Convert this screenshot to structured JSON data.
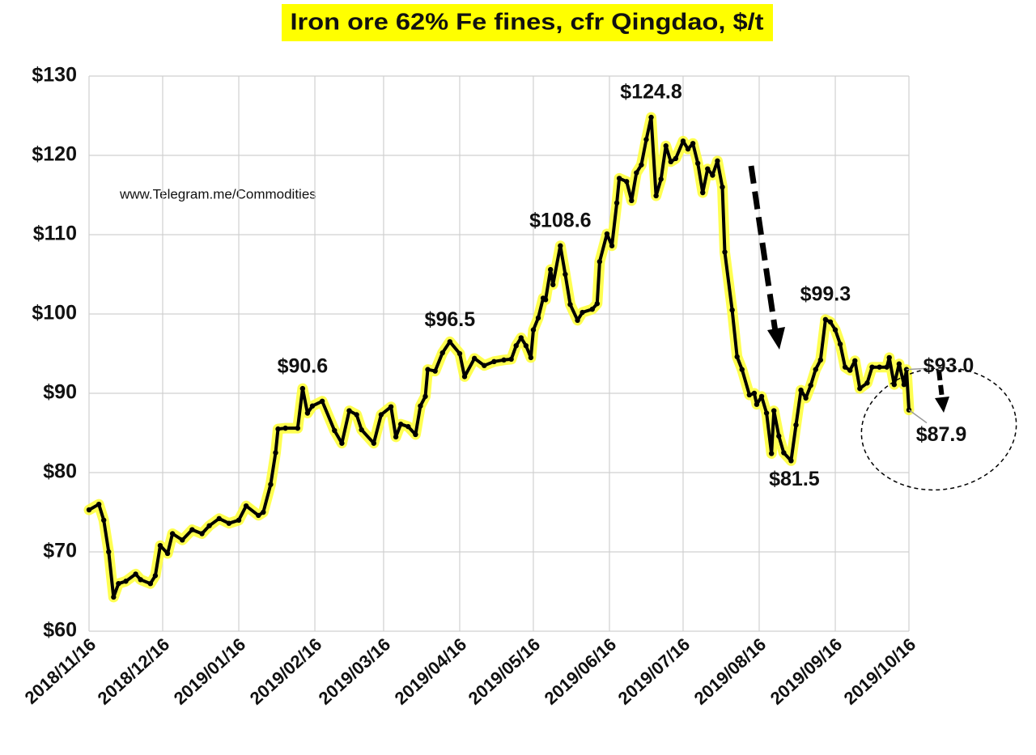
{
  "chart_data": {
    "type": "line",
    "title": "Iron ore 62% Fe fines, cfr Qingdao, $/t",
    "source": "www.Telegram.me/Commodities",
    "x": [
      "2018/11/16",
      "2018/11/20",
      "2018/11/22",
      "2018/11/24",
      "2018/11/26",
      "2018/11/28",
      "2018/12/01",
      "2018/12/05",
      "2018/12/07",
      "2018/12/11",
      "2018/12/13",
      "2018/12/15",
      "2018/12/18",
      "2018/12/20",
      "2018/12/24",
      "2018/12/28",
      "2019/01/01",
      "2019/01/04",
      "2019/01/08",
      "2019/01/12",
      "2019/01/16",
      "2019/01/19",
      "2019/01/24",
      "2019/01/26",
      "2019/01/29",
      "2019/01/31",
      "2019/02/01",
      "2019/02/04",
      "2019/02/09",
      "2019/02/11",
      "2019/02/13",
      "2019/02/15",
      "2019/02/19",
      "2019/02/24",
      "2019/02/27",
      "2019/03/02",
      "2019/03/05",
      "2019/03/07",
      "2019/03/12",
      "2019/03/15",
      "2019/03/19",
      "2019/03/21",
      "2019/03/23",
      "2019/03/26",
      "2019/03/29",
      "2019/03/31",
      "2019/04/02",
      "2019/04/03",
      "2019/04/06",
      "2019/04/09",
      "2019/04/12",
      "2019/04/16",
      "2019/04/18",
      "2019/04/22",
      "2019/04/26",
      "2019/04/30",
      "2019/05/04",
      "2019/05/07",
      "2019/05/09",
      "2019/05/11",
      "2019/05/13",
      "2019/05/15",
      "2019/05/16",
      "2019/05/18",
      "2019/05/20",
      "2019/05/21",
      "2019/05/23",
      "2019/05/24",
      "2019/05/27",
      "2019/05/29",
      "2019/05/31",
      "2019/06/03",
      "2019/06/05",
      "2019/06/09",
      "2019/06/11",
      "2019/06/12",
      "2019/06/15",
      "2019/06/17",
      "2019/06/19",
      "2019/06/20",
      "2019/06/23",
      "2019/06/25",
      "2019/06/27",
      "2019/06/29",
      "2019/07/01",
      "2019/07/03",
      "2019/07/05",
      "2019/07/07",
      "2019/07/09",
      "2019/07/11",
      "2019/07/13",
      "2019/07/16",
      "2019/07/18",
      "2019/07/20",
      "2019/07/22",
      "2019/07/24",
      "2019/07/26",
      "2019/07/28",
      "2019/07/30",
      "2019/08/01",
      "2019/08/02",
      "2019/08/05",
      "2019/08/07",
      "2019/08/09",
      "2019/08/12",
      "2019/08/14",
      "2019/08/15",
      "2019/08/17",
      "2019/08/19",
      "2019/08/21",
      "2019/08/22",
      "2019/08/24",
      "2019/08/26",
      "2019/08/29",
      "2019/08/31",
      "2019/09/02",
      "2019/09/04",
      "2019/09/06",
      "2019/09/08",
      "2019/09/10",
      "2019/09/12",
      "2019/09/14",
      "2019/09/16",
      "2019/09/18",
      "2019/09/20",
      "2019/09/22",
      "2019/09/24",
      "2019/09/26",
      "2019/09/29",
      "2019/10/01",
      "2019/10/04",
      "2019/10/07",
      "2019/10/08",
      "2019/10/10",
      "2019/10/12",
      "2019/10/14",
      "2019/10/15",
      "2019/10/16"
    ],
    "series": [
      {
        "name": "Iron ore 62% Fe fines",
        "color": "#000000",
        "glow": "#ffff33",
        "values": [
          75.3,
          76.0,
          74,
          70,
          64.3,
          66,
          66.3,
          67.2,
          66.5,
          66,
          67,
          70.8,
          69.8,
          72.3,
          71.5,
          72.8,
          72.3,
          73.3,
          74.2,
          73.6,
          74,
          75.8,
          74.6,
          75,
          78.5,
          82.5,
          85.5,
          85.6,
          85.6,
          90.6,
          87.5,
          88.4,
          89,
          85.3,
          83.7,
          87.8,
          87.3,
          85.4,
          83.7,
          87.3,
          88.3,
          84.5,
          86.1,
          85.8,
          84.8,
          88.4,
          89.6,
          93,
          92.8,
          95.1,
          96.5,
          95,
          92.1,
          94.4,
          93.5,
          94,
          94.2,
          94.3,
          96,
          97,
          96,
          94.5,
          98,
          99.5,
          102,
          101.8,
          105.6,
          103.7,
          108.6,
          105,
          101.2,
          99.2,
          100.2,
          100.6,
          101.3,
          106.6,
          110.1,
          108.6,
          114,
          117.1,
          116.7,
          114.3,
          117.8,
          118.8,
          122,
          124.8,
          114.9,
          117,
          121.2,
          119.2,
          119.6,
          121.8,
          120.8,
          121.5,
          119,
          115.3,
          118.3,
          117.5,
          119.3,
          116,
          107.8,
          100.5,
          94.6,
          93,
          89.8,
          90,
          88.6,
          89.6,
          87.5,
          82.4,
          87.8,
          84.6,
          82.5,
          81.5,
          86,
          90.4,
          89.4,
          91,
          93,
          94.2,
          99.3,
          99,
          98,
          96.2,
          93.3,
          92.9,
          94.1,
          90.6,
          91.3,
          93.3,
          93.3,
          93.3,
          94.5,
          91.1,
          93.7,
          91.1,
          93.0,
          87.9
        ]
      }
    ],
    "annotations": [
      {
        "text": "$90.6",
        "x": "2019/02/11",
        "y": 90.6
      },
      {
        "text": "$96.5",
        "x": "2019/04/12",
        "y": 96.5
      },
      {
        "text": "$108.6",
        "x": "2019/05/27",
        "y": 108.6
      },
      {
        "text": "$124.8",
        "x": "2019/07/03",
        "y": 124.8
      },
      {
        "text": "$81.5",
        "x": "2019/08/29",
        "y": 81.5
      },
      {
        "text": "$99.3",
        "x": "2019/09/12",
        "y": 99.3
      },
      {
        "text": "$93.0",
        "x": "2019/10/15",
        "y": 93.0
      },
      {
        "text": "$87.9",
        "x": "2019/10/16",
        "y": 87.9
      }
    ],
    "xlim": [
      "2018/11/16",
      "2019/10/16"
    ],
    "xticks": [
      "2018/11/16",
      "2018/12/16",
      "2019/01/16",
      "2019/02/16",
      "2019/03/16",
      "2019/04/16",
      "2019/05/16",
      "2019/06/16",
      "2019/07/16",
      "2019/08/16",
      "2019/09/16",
      "2019/10/16"
    ],
    "ylim": [
      60,
      130
    ],
    "yticks": [
      {
        "value": 60,
        "label": "$60"
      },
      {
        "value": 70,
        "label": "$70"
      },
      {
        "value": 80,
        "label": "$80"
      },
      {
        "value": 90,
        "label": "$90"
      },
      {
        "value": 100,
        "label": "$100"
      },
      {
        "value": 110,
        "label": "$110"
      },
      {
        "value": 120,
        "label": "$120"
      },
      {
        "value": 130,
        "label": "$130"
      }
    ],
    "grid": true
  }
}
